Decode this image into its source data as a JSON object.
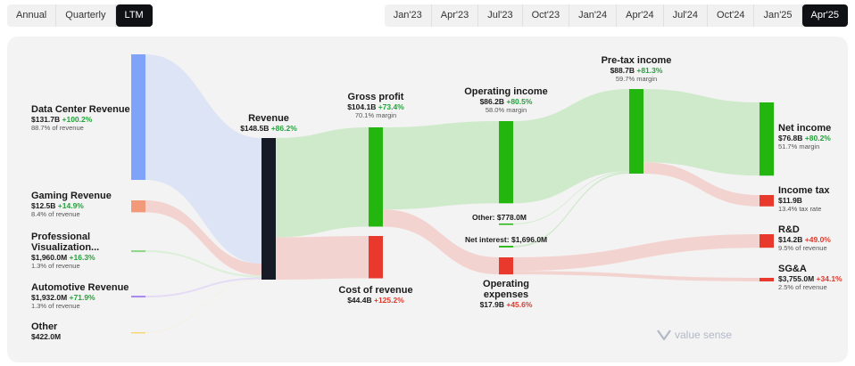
{
  "period_tabs": [
    {
      "label": "Annual",
      "active": false
    },
    {
      "label": "Quarterly",
      "active": false
    },
    {
      "label": "LTM",
      "active": true
    }
  ],
  "date_tabs": [
    {
      "label": "Jan'23",
      "active": false
    },
    {
      "label": "Apr'23",
      "active": false
    },
    {
      "label": "Jul'23",
      "active": false
    },
    {
      "label": "Oct'23",
      "active": false
    },
    {
      "label": "Jan'24",
      "active": false
    },
    {
      "label": "Apr'24",
      "active": false
    },
    {
      "label": "Jul'24",
      "active": false
    },
    {
      "label": "Oct'24",
      "active": false
    },
    {
      "label": "Jan'25",
      "active": false
    },
    {
      "label": "Apr'25",
      "active": true
    }
  ],
  "colors": {
    "data_center": "#7ea3f8",
    "gaming": "#f2997a",
    "pro_viz": "#8fd88a",
    "automotive": "#a98bf0",
    "other": "#f5d77a",
    "revenue": "#171b26",
    "profit": "#22b60f",
    "cost": "#e8392c",
    "flow_blue": "#dde4f5",
    "flow_green": "#cfeacb",
    "flow_red": "#f3d3cf"
  },
  "chart_data": {
    "type": "sankey",
    "units": "USD",
    "nodes": {
      "data_center": {
        "title": "Data Center Revenue",
        "value": "$131.7B",
        "change": "+100.2%",
        "note": "88.7% of revenue"
      },
      "gaming": {
        "title": "Gaming Revenue",
        "value": "$12.5B",
        "change": "+14.9%",
        "note": "8.4% of revenue"
      },
      "pro_viz": {
        "title_line1": "Professional",
        "title_line2": "Visualization...",
        "value": "$1,960.0M",
        "change": "+16.3%",
        "note": "1.3% of revenue"
      },
      "automotive": {
        "title": "Automotive Revenue",
        "value": "$1,932.0M",
        "change": "+71.9%",
        "note": "1.3% of revenue"
      },
      "other": {
        "title": "Other",
        "value": "$422.0M"
      },
      "revenue": {
        "title": "Revenue",
        "value": "$148.5B",
        "change": "+86.2%"
      },
      "gross_profit": {
        "title": "Gross profit",
        "value": "$104.1B",
        "change": "+73.4%",
        "note": "70.1% margin"
      },
      "cost_of_revenue": {
        "title": "Cost of revenue",
        "value": "$44.4B",
        "change": "+125.2%"
      },
      "operating_income": {
        "title": "Operating income",
        "value": "$86.2B",
        "change": "+80.5%",
        "note": "58.0% margin"
      },
      "operating_expenses": {
        "title_line1": "Operating",
        "title_line2": "expenses",
        "value": "$17.9B",
        "change": "+45.6%"
      },
      "other_income": {
        "label": "Other:",
        "value": "$778.0M"
      },
      "net_interest": {
        "label": "Net interest:",
        "value": "$1,696.0M"
      },
      "pretax_income": {
        "title": "Pre-tax income",
        "value": "$88.7B",
        "change": "+81.3%",
        "note": "59.7% margin"
      },
      "net_income": {
        "title": "Net income",
        "value": "$76.8B",
        "change": "+80.2%",
        "note": "51.7% margin"
      },
      "income_tax": {
        "title": "Income tax",
        "value": "$11.9B",
        "note": "13.4% tax rate"
      },
      "rnd": {
        "title": "R&D",
        "value": "$14.2B",
        "change": "+49.0%",
        "note": "9.5% of revenue"
      },
      "sga": {
        "title": "SG&A",
        "value": "$3,755.0M",
        "change": "+34.1%",
        "note": "2.5% of revenue"
      }
    },
    "links": [
      {
        "source": "Data Center Revenue",
        "target": "Revenue",
        "value": 131.7
      },
      {
        "source": "Gaming Revenue",
        "target": "Revenue",
        "value": 12.5
      },
      {
        "source": "Professional Visualization",
        "target": "Revenue",
        "value": 1.96
      },
      {
        "source": "Automotive Revenue",
        "target": "Revenue",
        "value": 1.932
      },
      {
        "source": "Other",
        "target": "Revenue",
        "value": 0.422
      },
      {
        "source": "Revenue",
        "target": "Gross profit",
        "value": 104.1
      },
      {
        "source": "Revenue",
        "target": "Cost of revenue",
        "value": 44.4
      },
      {
        "source": "Gross profit",
        "target": "Operating income",
        "value": 86.2
      },
      {
        "source": "Gross profit",
        "target": "Operating expenses",
        "value": 17.9
      },
      {
        "source": "Operating income",
        "target": "Pre-tax income",
        "value": 86.2
      },
      {
        "source": "Other",
        "target": "Pre-tax income",
        "value": 0.778
      },
      {
        "source": "Net interest",
        "target": "Pre-tax income",
        "value": 1.696
      },
      {
        "source": "Pre-tax income",
        "target": "Net income",
        "value": 76.8
      },
      {
        "source": "Pre-tax income",
        "target": "Income tax",
        "value": 11.9
      },
      {
        "source": "Operating expenses",
        "target": "R&D",
        "value": 14.2
      },
      {
        "source": "Operating expenses",
        "target": "SG&A",
        "value": 3.755
      }
    ]
  },
  "watermark": "value sense"
}
